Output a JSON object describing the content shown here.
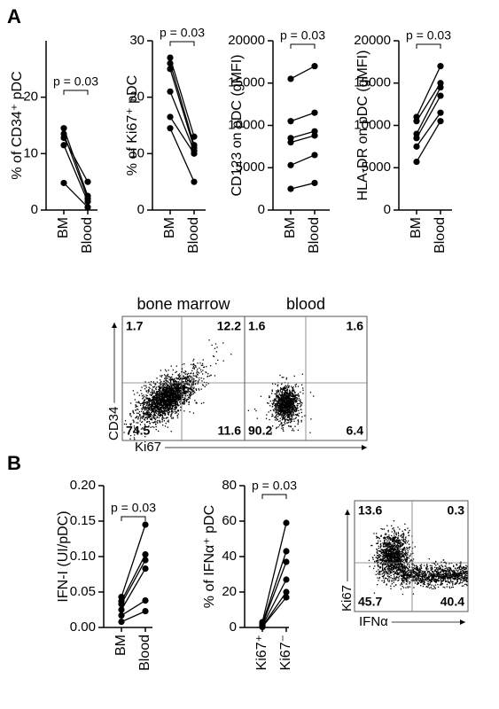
{
  "panels": [
    "A",
    "B"
  ],
  "chart_data": [
    {
      "type": "line",
      "ylabel": "% of CD34⁺ pDC",
      "categories": [
        "BM",
        "Blood"
      ],
      "series": [
        {
          "color": "#000000",
          "values": [
            14.5,
            2.5
          ]
        },
        {
          "color": "#000000",
          "values": [
            13.5,
            2.0
          ]
        },
        {
          "color": "#000000",
          "values": [
            12.8,
            5.0
          ]
        },
        {
          "color": "#000000",
          "values": [
            11.5,
            1.5
          ]
        },
        {
          "color": "#000000",
          "values": [
            4.8,
            0.5
          ]
        }
      ],
      "ylim": [
        0,
        30
      ],
      "yticks": [
        0,
        10,
        20
      ],
      "annotation": "p = 0.03"
    },
    {
      "type": "line",
      "ylabel": "% of Ki67⁺ pDC",
      "categories": [
        "BM",
        "Blood"
      ],
      "series": [
        {
          "color": "#000000",
          "values": [
            27,
            13
          ]
        },
        {
          "color": "#000000",
          "values": [
            26,
            11.5
          ]
        },
        {
          "color": "#000000",
          "values": [
            25,
            11
          ]
        },
        {
          "color": "#000000",
          "values": [
            21,
            10.5
          ]
        },
        {
          "color": "#000000",
          "values": [
            16.5,
            10
          ]
        },
        {
          "color": "#000000",
          "values": [
            14.5,
            5
          ]
        }
      ],
      "ylim": [
        0,
        30
      ],
      "yticks": [
        0,
        10,
        20,
        30
      ],
      "annotation": "p = 0.03"
    },
    {
      "type": "line",
      "ylabel": "CD123 on pDC (gMFI)",
      "categories": [
        "BM",
        "Blood"
      ],
      "series": [
        {
          "color": "#000000",
          "values": [
            15500,
            17000
          ]
        },
        {
          "color": "#000000",
          "values": [
            10500,
            11500
          ]
        },
        {
          "color": "#000000",
          "values": [
            8500,
            9300
          ]
        },
        {
          "color": "#000000",
          "values": [
            8000,
            8800
          ]
        },
        {
          "color": "#000000",
          "values": [
            5300,
            6500
          ]
        },
        {
          "color": "#000000",
          "values": [
            2500,
            3200
          ]
        }
      ],
      "ylim": [
        0,
        20000
      ],
      "yticks": [
        0,
        5000,
        10000,
        15000,
        20000
      ],
      "annotation": "p = 0.03"
    },
    {
      "type": "line",
      "ylabel": "HLA-DR on pDC (gMFI)",
      "categories": [
        "BM",
        "Blood"
      ],
      "series": [
        {
          "color": "#000000",
          "values": [
            11000,
            17000
          ]
        },
        {
          "color": "#000000",
          "values": [
            10500,
            15000
          ]
        },
        {
          "color": "#000000",
          "values": [
            9000,
            14500
          ]
        },
        {
          "color": "#000000",
          "values": [
            8500,
            13500
          ]
        },
        {
          "color": "#000000",
          "values": [
            7500,
            11500
          ]
        },
        {
          "color": "#000000",
          "values": [
            5700,
            10500
          ]
        }
      ],
      "ylim": [
        0,
        20000
      ],
      "yticks": [
        0,
        5000,
        10000,
        15000,
        20000
      ],
      "annotation": "p = 0.03"
    },
    {
      "type": "line",
      "ylabel": "IFN-I (UI/pDC)",
      "categories": [
        "BM",
        "Blood"
      ],
      "series": [
        {
          "color": "#000000",
          "values": [
            0.043,
            0.145
          ]
        },
        {
          "color": "#000000",
          "values": [
            0.037,
            0.103
          ]
        },
        {
          "color": "#000000",
          "values": [
            0.033,
            0.095
          ]
        },
        {
          "color": "#000000",
          "values": [
            0.025,
            0.083
          ]
        },
        {
          "color": "#000000",
          "values": [
            0.017,
            0.038
          ]
        },
        {
          "color": "#000000",
          "values": [
            0.008,
            0.023
          ]
        }
      ],
      "ylim": [
        0,
        0.2
      ],
      "yticks": [
        {
          "value": 0,
          "label": "0.00"
        },
        {
          "value": 0.05,
          "label": "0.05"
        },
        {
          "value": 0.1,
          "label": "0.10"
        },
        {
          "value": 0.15,
          "label": "0.15"
        },
        {
          "value": 0.2,
          "label": "0.20"
        }
      ],
      "annotation": "p = 0.03"
    },
    {
      "type": "line",
      "ylabel": "% of IFNα⁺ pDC",
      "categories": [
        "Ki67⁺",
        "Ki67⁻"
      ],
      "series": [
        {
          "color": "#000000",
          "values": [
            3,
            59
          ]
        },
        {
          "color": "#000000",
          "values": [
            2,
            43
          ]
        },
        {
          "color": "#000000",
          "values": [
            1.5,
            37
          ]
        },
        {
          "color": "#000000",
          "values": [
            1,
            27
          ]
        },
        {
          "color": "#000000",
          "values": [
            0.5,
            20
          ]
        },
        {
          "color": "#000000",
          "values": [
            0.3,
            17
          ]
        }
      ],
      "ylim": [
        0,
        80
      ],
      "yticks": [
        0,
        20,
        40,
        60,
        80
      ],
      "annotation": "p = 0.03"
    }
  ],
  "flow_plots": [
    {
      "title": "bone marrow",
      "x_label": "Ki67",
      "y_label": "CD34",
      "quadrants": [
        1.7,
        12.2,
        74.5,
        11.6
      ]
    },
    {
      "title": "blood",
      "quadrants": [
        1.6,
        1.6,
        90.2,
        6.4
      ]
    },
    {
      "x_label": "IFNα",
      "y_label": "Ki67",
      "quadrants": [
        13.6,
        0.3,
        45.7,
        40.4
      ]
    }
  ]
}
